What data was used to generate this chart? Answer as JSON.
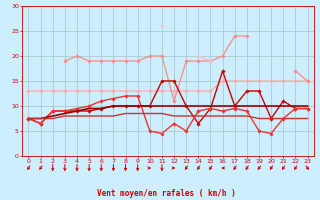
{
  "title": "",
  "xlabel": "Vent moyen/en rafales ( km/h )",
  "background_color": "#cceeff",
  "grid_color": "#aacccc",
  "x": [
    0,
    1,
    2,
    3,
    4,
    5,
    6,
    7,
    8,
    9,
    10,
    11,
    12,
    13,
    14,
    15,
    16,
    17,
    18,
    19,
    20,
    21,
    22,
    23
  ],
  "series": [
    {
      "name": "flat_pink1",
      "color": "#ffaaaa",
      "linewidth": 0.9,
      "marker": "D",
      "markersize": 1.8,
      "values": [
        13,
        13,
        13,
        13,
        13,
        13,
        13,
        13,
        13,
        13,
        13,
        13,
        13,
        13,
        13,
        13,
        15,
        15,
        15,
        15,
        15,
        15,
        15,
        15
      ]
    },
    {
      "name": "mid_pink",
      "color": "#ff8888",
      "linewidth": 0.9,
      "marker": "D",
      "markersize": 1.8,
      "values": [
        null,
        null,
        null,
        19,
        20,
        19,
        19,
        19,
        19,
        19,
        20,
        20,
        11,
        19,
        19,
        19,
        20,
        24,
        24,
        null,
        null,
        null,
        17,
        15
      ]
    },
    {
      "name": "light_pink_spike",
      "color": "#ffbbcc",
      "linewidth": 0.9,
      "marker": "D",
      "markersize": 1.8,
      "values": [
        null,
        null,
        null,
        null,
        null,
        null,
        null,
        null,
        null,
        null,
        null,
        26,
        null,
        null,
        20,
        19,
        null,
        null,
        null,
        null,
        null,
        null,
        null,
        null
      ]
    },
    {
      "name": "dark_red1",
      "color": "#cc0000",
      "linewidth": 1.0,
      "marker": "D",
      "markersize": 1.8,
      "values": [
        7.5,
        6.5,
        9,
        9,
        9,
        9,
        9.5,
        10,
        10,
        10,
        10,
        15,
        15,
        10,
        6.5,
        9.5,
        17,
        10,
        13,
        13,
        7.5,
        11,
        9.5,
        9.5
      ]
    },
    {
      "name": "dark_red2",
      "color": "#ee3333",
      "linewidth": 1.0,
      "marker": "D",
      "markersize": 1.8,
      "values": [
        7.5,
        6.5,
        9,
        9,
        9.5,
        10,
        11,
        11.5,
        12,
        12,
        5,
        4.5,
        6.5,
        5,
        9,
        9.5,
        9,
        9.5,
        9,
        5,
        4.5,
        7.5,
        9.5,
        9.5
      ]
    },
    {
      "name": "trend_dark",
      "color": "#990000",
      "linewidth": 1.2,
      "marker": null,
      "markersize": 0,
      "values": [
        7.5,
        7.5,
        8,
        8.5,
        9,
        9.5,
        9.5,
        10,
        10,
        10,
        10,
        10,
        10,
        10,
        10,
        10,
        10,
        10,
        10,
        10,
        10,
        10,
        10,
        10
      ]
    },
    {
      "name": "trend_mid",
      "color": "#cc3333",
      "linewidth": 1.0,
      "marker": null,
      "markersize": 0,
      "values": [
        7.5,
        7.5,
        7.5,
        8,
        8,
        8,
        8,
        8,
        8.5,
        8.5,
        8.5,
        8.5,
        8,
        8,
        8,
        8,
        8,
        8,
        8,
        7.5,
        7.5,
        7.5,
        7.5,
        7.5
      ]
    }
  ],
  "ylim": [
    0,
    30
  ],
  "yticks": [
    0,
    5,
    10,
    15,
    20,
    25,
    30
  ],
  "xlim": [
    -0.5,
    23.5
  ],
  "xticks": [
    0,
    1,
    2,
    3,
    4,
    5,
    6,
    7,
    8,
    9,
    10,
    11,
    12,
    13,
    14,
    15,
    16,
    17,
    18,
    19,
    20,
    21,
    22,
    23
  ],
  "tick_fontsize": 4.5,
  "label_fontsize": 5.5,
  "arrow_angles": [
    225,
    225,
    180,
    180,
    180,
    180,
    180,
    180,
    180,
    180,
    90,
    180,
    90,
    225,
    225,
    225,
    270,
    225,
    225,
    225,
    225,
    225,
    225,
    135
  ]
}
